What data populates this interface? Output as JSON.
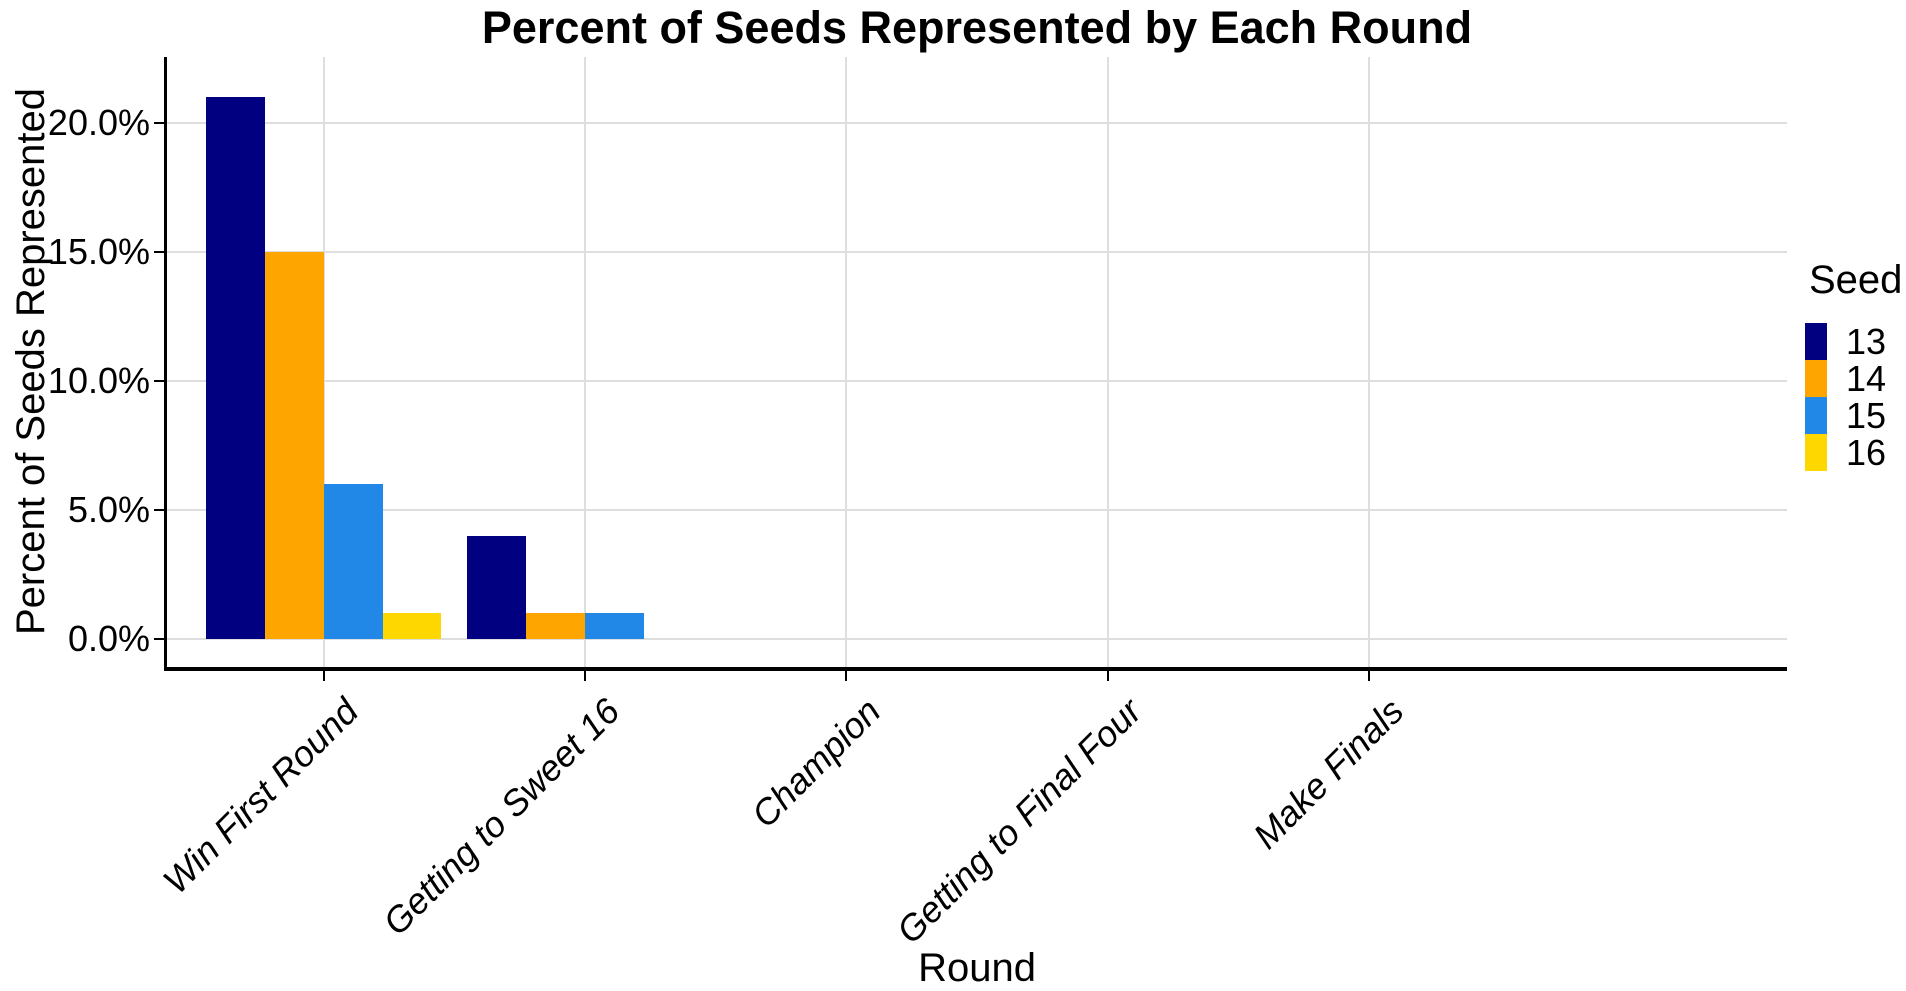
{
  "chart_data": {
    "type": "bar",
    "title": "Percent of Seeds Represented by Each Round",
    "xlabel": "Round",
    "ylabel": "Percent of Seeds Represented",
    "categories": [
      "Win First Round",
      "Getting to Sweet 16",
      "Champion",
      "Getting to Final Four",
      "Make Finals"
    ],
    "series": [
      {
        "name": "13",
        "color": "#000080",
        "values": [
          21,
          4,
          0,
          0,
          0
        ]
      },
      {
        "name": "14",
        "color": "#FFA500",
        "values": [
          15,
          1,
          0,
          0,
          0
        ]
      },
      {
        "name": "15",
        "color": "#2188E8",
        "values": [
          6,
          1,
          0,
          0,
          0
        ]
      },
      {
        "name": "16",
        "color": "#FFD700",
        "values": [
          1,
          0,
          0,
          0,
          0
        ]
      }
    ],
    "value_format": "percent",
    "y_ticks": [
      "0.0%",
      "5.0%",
      "10.0%",
      "15.0%",
      "20.0%"
    ],
    "y_tick_values": [
      0,
      5,
      10,
      15,
      20
    ],
    "ylim": [
      0,
      22.5
    ],
    "grid": true,
    "grid_color": "#dedede",
    "axis_color": "#000000",
    "background_color": "#ffffff",
    "legend_title": "Seed",
    "legend_position": "right",
    "x_label_angle": 45
  }
}
